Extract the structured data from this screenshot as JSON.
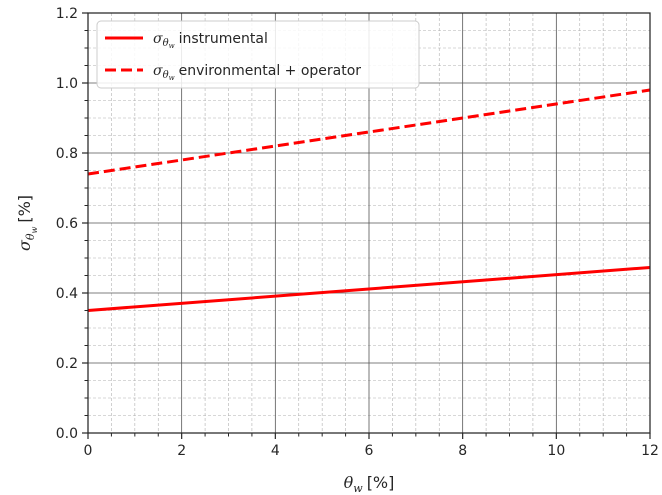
{
  "chart_data": {
    "type": "line",
    "x": [
      0,
      12
    ],
    "series": [
      {
        "name": "instrumental",
        "values": [
          0.35,
          0.473
        ],
        "color": "#ff0000",
        "style": "solid"
      },
      {
        "name": "environmental + operator",
        "values": [
          0.74,
          0.98
        ],
        "color": "#ff0000",
        "style": "dashed"
      }
    ],
    "xlim": [
      0,
      12
    ],
    "ylim": [
      0.0,
      1.2
    ],
    "x_ticks": [
      "0",
      "2",
      "4",
      "6",
      "8",
      "10",
      "12"
    ],
    "y_ticks": [
      "0.0",
      "0.2",
      "0.4",
      "0.6",
      "0.8",
      "1.0",
      "1.2"
    ],
    "xlabel": {
      "symbol": "θ",
      "sub": "w",
      "unit": "[%]"
    },
    "ylabel": {
      "symbol": "σ",
      "sub": "θ",
      "subsub": "w",
      "unit": "[%]"
    },
    "legend_symbol": {
      "symbol": "σ",
      "sub": "θ",
      "subsub": "w"
    },
    "grid": {
      "major": true,
      "minor": true
    },
    "legend_position": "top-left"
  }
}
